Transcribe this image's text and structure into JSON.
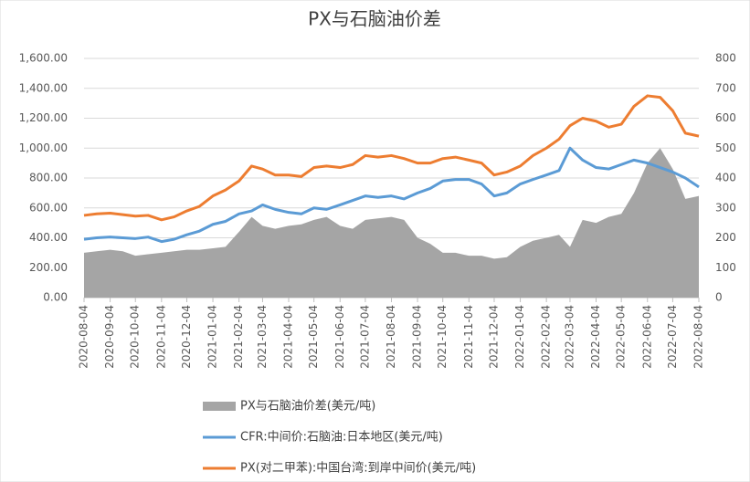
{
  "chart_data": {
    "type": "line",
    "title": "PX与石脑油价差",
    "x": [
      "2020-08-04",
      "2020-08-19",
      "2020-09-04",
      "2020-09-19",
      "2020-10-04",
      "2020-10-19",
      "2020-11-04",
      "2020-11-19",
      "2020-12-04",
      "2020-12-19",
      "2021-01-04",
      "2021-01-19",
      "2021-02-04",
      "2021-02-19",
      "2021-03-04",
      "2021-03-19",
      "2021-04-04",
      "2021-04-19",
      "2021-05-04",
      "2021-05-19",
      "2021-06-04",
      "2021-06-19",
      "2021-07-04",
      "2021-07-19",
      "2021-08-04",
      "2021-08-19",
      "2021-09-04",
      "2021-09-19",
      "2021-10-04",
      "2021-10-19",
      "2021-11-04",
      "2021-11-19",
      "2021-12-04",
      "2021-12-19",
      "2022-01-04",
      "2022-01-19",
      "2022-02-04",
      "2022-02-19",
      "2022-03-04",
      "2022-03-19",
      "2022-04-04",
      "2022-04-19",
      "2022-05-04",
      "2022-05-19",
      "2022-06-04",
      "2022-06-19",
      "2022-07-04",
      "2022-07-19",
      "2022-08-04"
    ],
    "series": [
      {
        "name": "PX与石脑油价差(美元/吨)",
        "type": "area",
        "axis": "y2",
        "color": "#a5a5a5",
        "values": [
          150,
          155,
          160,
          155,
          140,
          145,
          150,
          155,
          160,
          160,
          165,
          170,
          220,
          270,
          240,
          230,
          240,
          245,
          260,
          270,
          240,
          230,
          260,
          265,
          270,
          260,
          200,
          180,
          150,
          150,
          140,
          140,
          130,
          135,
          170,
          190,
          200,
          210,
          170,
          260,
          250,
          270,
          280,
          350,
          450,
          500,
          430,
          330,
          340
        ]
      },
      {
        "name": "CFR:中间价:石脑油:日本地区(美元/吨)",
        "type": "line",
        "color": "#5b9bd5",
        "values": [
          390,
          400,
          405,
          400,
          395,
          405,
          375,
          390,
          420,
          445,
          490,
          510,
          560,
          580,
          620,
          590,
          570,
          560,
          600,
          590,
          620,
          650,
          680,
          670,
          680,
          660,
          700,
          730,
          780,
          790,
          790,
          760,
          680,
          700,
          760,
          790,
          820,
          850,
          1000,
          920,
          870,
          860,
          890,
          920,
          900,
          870,
          840,
          800,
          740
        ]
      },
      {
        "name": "PX(对二甲苯):中国台湾:到岸中间价(美元/吨)",
        "type": "line",
        "color": "#ed7d31",
        "values": [
          550,
          560,
          565,
          555,
          545,
          550,
          520,
          540,
          580,
          610,
          680,
          720,
          780,
          880,
          860,
          820,
          820,
          810,
          870,
          880,
          870,
          890,
          950,
          940,
          950,
          930,
          900,
          900,
          930,
          940,
          920,
          900,
          820,
          840,
          880,
          950,
          1000,
          1060,
          1150,
          1200,
          1180,
          1140,
          1160,
          1280,
          1350,
          1340,
          1250,
          1100,
          1080
        ]
      }
    ],
    "xlim": [
      "2020-08-04",
      "2022-08-04"
    ],
    "xticks": [
      "2020-08-04",
      "2020-09-04",
      "2020-10-04",
      "2020-11-04",
      "2020-12-04",
      "2021-01-04",
      "2021-02-04",
      "2021-03-04",
      "2021-04-04",
      "2021-05-04",
      "2021-06-04",
      "2021-07-04",
      "2021-08-04",
      "2021-09-04",
      "2021-10-04",
      "2021-11-04",
      "2021-12-04",
      "2022-01-04",
      "2022-02-04",
      "2022-03-04",
      "2022-04-04",
      "2022-05-04",
      "2022-06-04",
      "2022-07-04",
      "2022-08-04"
    ],
    "ylim": [
      0,
      1600
    ],
    "yticks": [
      {
        "value": 0,
        "label": "0.00"
      },
      {
        "value": 200,
        "label": "200.00"
      },
      {
        "value": 400,
        "label": "400.00"
      },
      {
        "value": 600,
        "label": "600.00"
      },
      {
        "value": 800,
        "label": "800.00"
      },
      {
        "value": 1000,
        "label": "1,000.00"
      },
      {
        "value": 1200,
        "label": "1,200.00"
      },
      {
        "value": 1400,
        "label": "1,400.00"
      },
      {
        "value": 1600,
        "label": "1,600.00"
      }
    ],
    "y2lim": [
      0,
      800
    ],
    "y2ticks": [
      0,
      100,
      200,
      300,
      400,
      500,
      600,
      700,
      800
    ],
    "grid": true,
    "legend": "bottom"
  }
}
